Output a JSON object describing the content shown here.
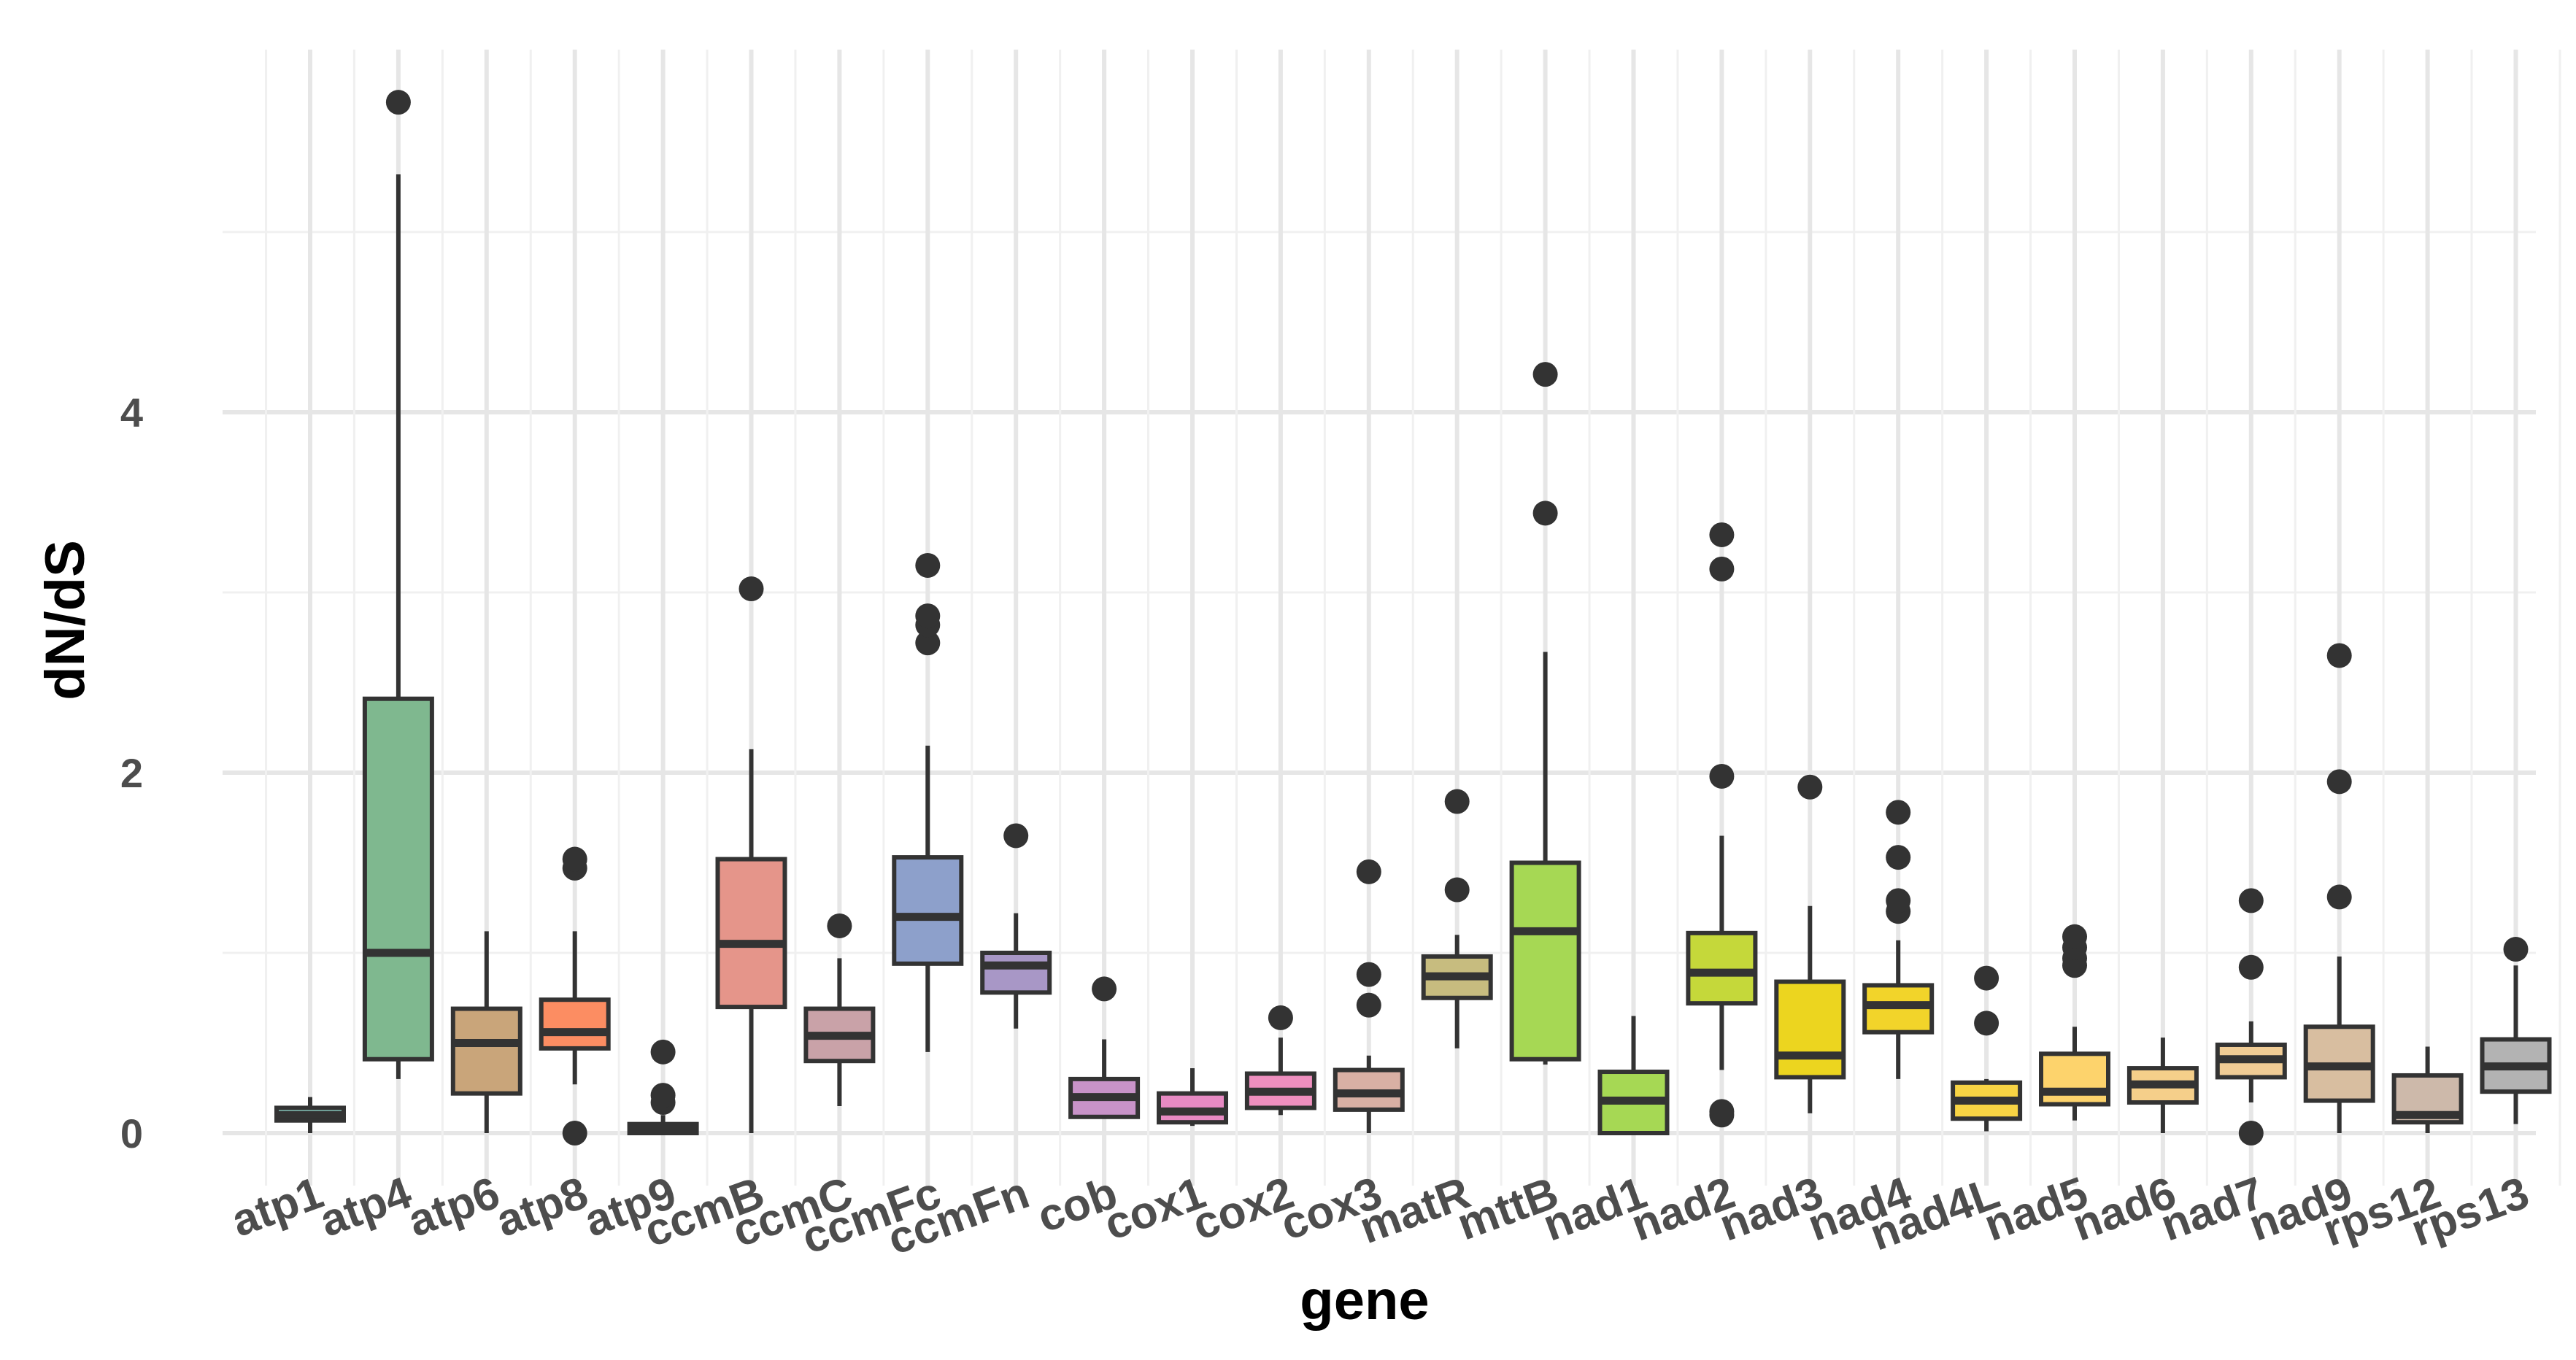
{
  "chart_data": {
    "type": "boxplot",
    "title": "",
    "xlabel": "gene",
    "ylabel": "dN/dS",
    "ylim": [
      -0.28,
      6.05
    ],
    "yticks": [
      0,
      2,
      4
    ],
    "grid": true,
    "categories": [
      "atp1",
      "atp4",
      "atp6",
      "atp8",
      "atp9",
      "ccmB",
      "ccmC",
      "ccmFc",
      "ccmFn",
      "cob",
      "cox1",
      "cox2",
      "cox3",
      "matR",
      "mttB",
      "nad1",
      "nad2",
      "nad3",
      "nad4",
      "nad4L",
      "nad5",
      "nad6",
      "nad7",
      "nad9",
      "rps12",
      "rps13"
    ],
    "boxes": [
      {
        "gene": "atp1",
        "color": "#8dd3c7",
        "min": 0.0,
        "q1": 0.07,
        "median": 0.1,
        "q3": 0.14,
        "max": 0.2,
        "outliers": []
      },
      {
        "gene": "atp4",
        "color": "#7fb88f",
        "min": 0.3,
        "q1": 0.41,
        "median": 1.0,
        "q3": 2.41,
        "max": 5.32,
        "outliers": [
          5.72
        ]
      },
      {
        "gene": "atp6",
        "color": "#c9a57a",
        "min": 0.0,
        "q1": 0.22,
        "median": 0.5,
        "q3": 0.69,
        "max": 1.12,
        "outliers": []
      },
      {
        "gene": "atp8",
        "color": "#fc8d62",
        "min": 0.27,
        "q1": 0.47,
        "median": 0.56,
        "q3": 0.74,
        "max": 1.12,
        "outliers": [
          1.47,
          1.52,
          0.0
        ]
      },
      {
        "gene": "atp9",
        "color": "#e78ac3",
        "min": 0.0,
        "q1": 0.0,
        "median": 0.02,
        "q3": 0.05,
        "max": 0.1,
        "outliers": [
          0.17,
          0.21,
          0.45
        ]
      },
      {
        "gene": "ccmB",
        "color": "#e5958a",
        "min": 0.0,
        "q1": 0.7,
        "median": 1.05,
        "q3": 1.52,
        "max": 2.13,
        "outliers": [
          3.02
        ]
      },
      {
        "gene": "ccmC",
        "color": "#c9a2a8",
        "min": 0.15,
        "q1": 0.4,
        "median": 0.54,
        "q3": 0.69,
        "max": 0.97,
        "outliers": [
          1.15
        ]
      },
      {
        "gene": "ccmFc",
        "color": "#8da0cb",
        "min": 0.45,
        "q1": 0.94,
        "median": 1.2,
        "q3": 1.53,
        "max": 2.15,
        "outliers": [
          2.72,
          2.82,
          2.87,
          3.15
        ]
      },
      {
        "gene": "ccmFn",
        "color": "#a897c6",
        "min": 0.58,
        "q1": 0.78,
        "median": 0.93,
        "q3": 1.0,
        "max": 1.22,
        "outliers": [
          1.65
        ]
      },
      {
        "gene": "cob",
        "color": "#c893c8",
        "min": 0.08,
        "q1": 0.09,
        "median": 0.2,
        "q3": 0.3,
        "max": 0.52,
        "outliers": [
          0.8
        ]
      },
      {
        "gene": "cox1",
        "color": "#e78ac3",
        "min": 0.04,
        "q1": 0.06,
        "median": 0.12,
        "q3": 0.22,
        "max": 0.36,
        "outliers": []
      },
      {
        "gene": "cox2",
        "color": "#ef8fbf",
        "min": 0.1,
        "q1": 0.14,
        "median": 0.23,
        "q3": 0.33,
        "max": 0.53,
        "outliers": [
          0.64
        ]
      },
      {
        "gene": "cox3",
        "color": "#d9b0a4",
        "min": 0.0,
        "q1": 0.13,
        "median": 0.22,
        "q3": 0.35,
        "max": 0.43,
        "outliers": [
          0.71,
          0.88,
          1.45
        ]
      },
      {
        "gene": "matR",
        "color": "#c7bc7f",
        "min": 0.47,
        "q1": 0.75,
        "median": 0.87,
        "q3": 0.98,
        "max": 1.1,
        "outliers": [
          1.35,
          1.84
        ]
      },
      {
        "gene": "mttB",
        "color": "#a6d854",
        "min": 0.38,
        "q1": 0.41,
        "median": 1.12,
        "q3": 1.5,
        "max": 2.67,
        "outliers": [
          3.44,
          4.21
        ]
      },
      {
        "gene": "nad1",
        "color": "#a6d854",
        "min": 0.0,
        "q1": 0.0,
        "median": 0.18,
        "q3": 0.34,
        "max": 0.65,
        "outliers": []
      },
      {
        "gene": "nad2",
        "color": "#c5d83a",
        "min": 0.35,
        "q1": 0.72,
        "median": 0.89,
        "q3": 1.11,
        "max": 1.65,
        "outliers": [
          0.1,
          0.12,
          1.98,
          3.13,
          3.32
        ]
      },
      {
        "gene": "nad3",
        "color": "#ecd51f",
        "min": 0.11,
        "q1": 0.31,
        "median": 0.43,
        "q3": 0.84,
        "max": 1.26,
        "outliers": [
          1.92
        ]
      },
      {
        "gene": "nad4",
        "color": "#f2d42a",
        "min": 0.3,
        "q1": 0.56,
        "median": 0.71,
        "q3": 0.82,
        "max": 1.07,
        "outliers": [
          1.23,
          1.29,
          1.53,
          1.78
        ]
      },
      {
        "gene": "nad4L",
        "color": "#f8d444",
        "min": 0.01,
        "q1": 0.08,
        "median": 0.18,
        "q3": 0.28,
        "max": 0.3,
        "outliers": [
          0.61,
          0.86
        ]
      },
      {
        "gene": "nad5",
        "color": "#fdd36c",
        "min": 0.07,
        "q1": 0.16,
        "median": 0.23,
        "q3": 0.44,
        "max": 0.59,
        "outliers": [
          0.93,
          0.97,
          1.03,
          1.09
        ]
      },
      {
        "gene": "nad6",
        "color": "#f5cf8a",
        "min": 0.0,
        "q1": 0.17,
        "median": 0.27,
        "q3": 0.36,
        "max": 0.53,
        "outliers": []
      },
      {
        "gene": "nad7",
        "color": "#f0cc95",
        "min": 0.17,
        "q1": 0.31,
        "median": 0.41,
        "q3": 0.49,
        "max": 0.62,
        "outliers": [
          0.0,
          0.92,
          1.29
        ]
      },
      {
        "gene": "nad9",
        "color": "#d8bea0",
        "min": 0.0,
        "q1": 0.18,
        "median": 0.37,
        "q3": 0.59,
        "max": 0.98,
        "outliers": [
          1.31,
          1.95,
          2.65
        ]
      },
      {
        "gene": "rps12",
        "color": "#cdb9aa",
        "min": 0.0,
        "q1": 0.06,
        "median": 0.1,
        "q3": 0.32,
        "max": 0.48,
        "outliers": []
      },
      {
        "gene": "rps13",
        "color": "#b3b3b3",
        "min": 0.05,
        "q1": 0.23,
        "median": 0.37,
        "q3": 0.52,
        "max": 0.93,
        "outliers": [
          1.02
        ]
      }
    ]
  }
}
